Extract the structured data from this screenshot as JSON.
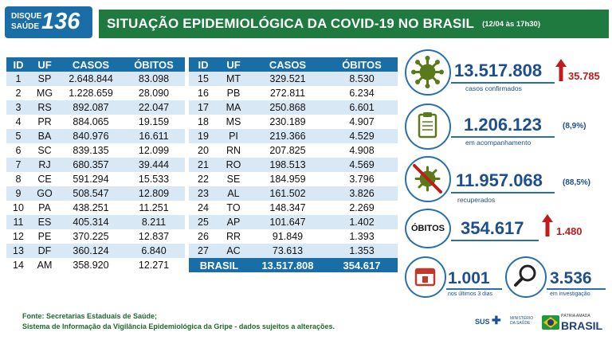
{
  "header": {
    "logo_line1": "DISQUE",
    "logo_line2": "SAÚDE",
    "logo_number": "136",
    "title": "SITUAÇÃO EPIDEMIOLÓGICA DA COVID-19 NO BRASIL",
    "subtitle": "(12/04 às 17h30)"
  },
  "table_headers": {
    "id": "ID",
    "uf": "UF",
    "casos": "CASOS",
    "obitos": "ÓBITOS"
  },
  "table_left": [
    {
      "id": "1",
      "uf": "SP",
      "casos": "2.648.844",
      "obitos": "83.098"
    },
    {
      "id": "2",
      "uf": "MG",
      "casos": "1.228.659",
      "obitos": "28.090"
    },
    {
      "id": "3",
      "uf": "RS",
      "casos": "892.087",
      "obitos": "22.047"
    },
    {
      "id": "4",
      "uf": "PR",
      "casos": "884.065",
      "obitos": "19.159"
    },
    {
      "id": "5",
      "uf": "BA",
      "casos": "840.976",
      "obitos": "16.611"
    },
    {
      "id": "6",
      "uf": "SC",
      "casos": "839.135",
      "obitos": "12.099"
    },
    {
      "id": "7",
      "uf": "RJ",
      "casos": "680.357",
      "obitos": "39.444"
    },
    {
      "id": "8",
      "uf": "CE",
      "casos": "591.294",
      "obitos": "15.533"
    },
    {
      "id": "9",
      "uf": "GO",
      "casos": "508.547",
      "obitos": "12.809"
    },
    {
      "id": "10",
      "uf": "PA",
      "casos": "438.251",
      "obitos": "11.251"
    },
    {
      "id": "11",
      "uf": "ES",
      "casos": "405.314",
      "obitos": "8.211"
    },
    {
      "id": "12",
      "uf": "PE",
      "casos": "370.225",
      "obitos": "12.837"
    },
    {
      "id": "13",
      "uf": "DF",
      "casos": "360.124",
      "obitos": "6.840"
    },
    {
      "id": "14",
      "uf": "AM",
      "casos": "358.920",
      "obitos": "12.271"
    }
  ],
  "table_right": [
    {
      "id": "15",
      "uf": "MT",
      "casos": "329.521",
      "obitos": "8.530"
    },
    {
      "id": "16",
      "uf": "PB",
      "casos": "272.811",
      "obitos": "6.234"
    },
    {
      "id": "17",
      "uf": "MA",
      "casos": "250.868",
      "obitos": "6.601"
    },
    {
      "id": "18",
      "uf": "MS",
      "casos": "230.189",
      "obitos": "4.907"
    },
    {
      "id": "19",
      "uf": "PI",
      "casos": "219.366",
      "obitos": "4.529"
    },
    {
      "id": "20",
      "uf": "RN",
      "casos": "207.825",
      "obitos": "4.908"
    },
    {
      "id": "21",
      "uf": "RO",
      "casos": "198.513",
      "obitos": "4.569"
    },
    {
      "id": "22",
      "uf": "SE",
      "casos": "184.959",
      "obitos": "3.796"
    },
    {
      "id": "23",
      "uf": "AL",
      "casos": "161.502",
      "obitos": "3.826"
    },
    {
      "id": "24",
      "uf": "TO",
      "casos": "148.347",
      "obitos": "2.269"
    },
    {
      "id": "25",
      "uf": "AP",
      "casos": "101.647",
      "obitos": "1.402"
    },
    {
      "id": "26",
      "uf": "RR",
      "casos": "91.849",
      "obitos": "1.393"
    },
    {
      "id": "27",
      "uf": "AC",
      "casos": "73.613",
      "obitos": "1.353"
    }
  ],
  "total": {
    "label": "BRASIL",
    "casos": "13.517.808",
    "obitos": "354.617"
  },
  "summary": {
    "confirmados": {
      "value": "13.517.808",
      "delta": "35.785",
      "caption": "casos confirmados"
    },
    "acompanhamento": {
      "value": "1.206.123",
      "pct": "(8,9%)",
      "caption": "em acompanhamento"
    },
    "recuperados": {
      "value": "11.957.068",
      "pct": "(88,5%)",
      "caption": "recuperados"
    },
    "obitos": {
      "label": "ÓBITOS",
      "value": "354.617",
      "delta": "1.480"
    },
    "ultimos": {
      "value": "1.001",
      "caption": "nos últimos 3 dias"
    },
    "investigacao": {
      "value": "3.536",
      "caption": "em investigação"
    }
  },
  "footer": {
    "line1": "Fonte: Secretarias Estaduais de Saúde;",
    "line2": "Sistema de Informação da Vigilância Epidemiológica da Gripe - dados sujeitos a alterações.",
    "sus": "SUS",
    "ministerio": "MINISTÉRIO DA SAÚDE",
    "patria_small": "PÁTRIA AMADA",
    "patria_big": "BRASIL"
  },
  "colors": {
    "header_green": "#1e7a3e",
    "table_blue": "#1a6ea8",
    "row_stripe": "#d9e8f5",
    "text_blue": "#1d4f8f",
    "alert_red": "#c01c1c"
  }
}
